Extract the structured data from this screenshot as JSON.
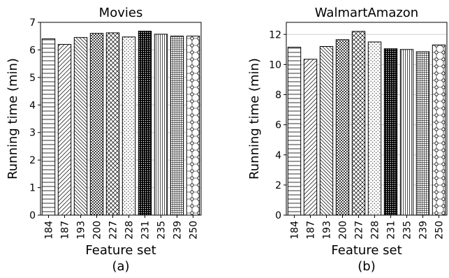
{
  "chart_data": [
    {
      "type": "bar",
      "title": "Movies",
      "xlabel": "Feature set",
      "ylabel": "Running time (min)",
      "caption": "(a)",
      "categories": [
        "184",
        "187",
        "193",
        "200",
        "227",
        "228",
        "231",
        "235",
        "239",
        "250"
      ],
      "values": [
        6.4,
        6.2,
        6.45,
        6.6,
        6.62,
        6.47,
        6.68,
        6.57,
        6.5,
        6.5
      ],
      "ylim": [
        0,
        7
      ],
      "yticks": [
        0,
        1,
        2,
        3,
        4,
        5,
        6,
        7
      ],
      "grid": "horizontal"
    },
    {
      "type": "bar",
      "title": "WalmartAmazon",
      "xlabel": "Feature set",
      "ylabel": "Running time (min)",
      "caption": "(b)",
      "categories": [
        "184",
        "187",
        "193",
        "200",
        "227",
        "228",
        "231",
        "235",
        "239",
        "250"
      ],
      "values": [
        11.15,
        10.35,
        11.2,
        11.65,
        12.2,
        11.5,
        11.05,
        11.0,
        10.85,
        11.3
      ],
      "ylim": [
        0,
        12.8
      ],
      "yticks": [
        0,
        2,
        4,
        6,
        8,
        10,
        12
      ],
      "grid": "horizontal"
    }
  ]
}
